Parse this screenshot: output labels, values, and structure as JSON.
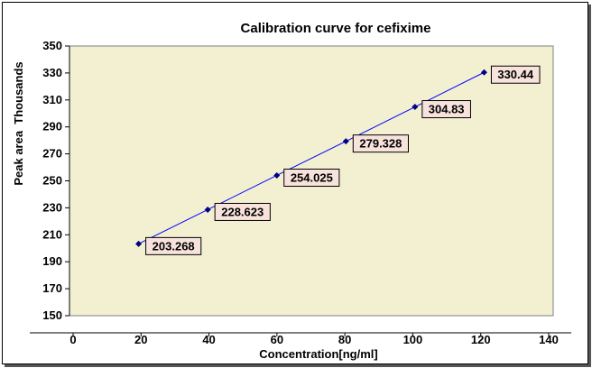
{
  "chart_data": {
    "type": "line",
    "title": "Calibration curve for cefixime",
    "xlabel": "Concentration[ng/ml]",
    "ylabel": "Peak area  Thousands",
    "xlim": [
      0,
      140
    ],
    "ylim": [
      150,
      350
    ],
    "x_ticks": [
      "0",
      "20",
      "40",
      "60",
      "80",
      "100",
      "120",
      "140"
    ],
    "y_ticks": [
      "150",
      "170",
      "190",
      "210",
      "230",
      "250",
      "270",
      "290",
      "310",
      "330",
      "350"
    ],
    "grid": false,
    "legend": "none",
    "series": [
      {
        "x": [
          20,
          40,
          60,
          80,
          100,
          120
        ],
        "y": [
          203.268,
          228.623,
          254.025,
          279.328,
          304.83,
          330.44
        ],
        "labels": [
          "203.268",
          "228.623",
          "254.025",
          "279.328",
          "304.83",
          "330.44"
        ]
      }
    ],
    "colors": {
      "plot_bg": "#f3f0d2",
      "line": "#0000ff",
      "marker": "#000080",
      "label_bg": "#f7e2dc"
    }
  }
}
